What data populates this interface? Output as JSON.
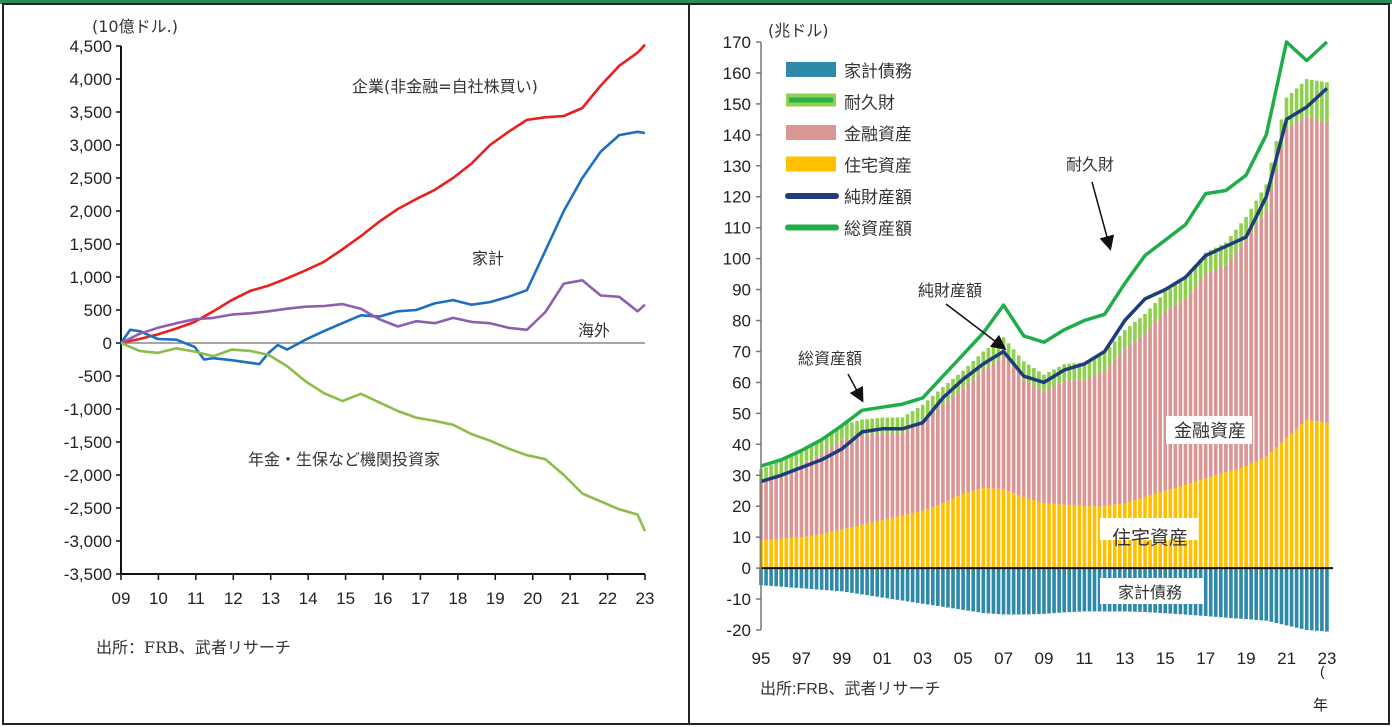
{
  "chart_data": [
    {
      "type": "line",
      "unit_label": "(10億ドル.)",
      "ylim": [
        -3500,
        4500
      ],
      "yticks": [
        4500,
        4000,
        3500,
        3000,
        2500,
        2000,
        1500,
        1000,
        500,
        0,
        -500,
        -1000,
        -1500,
        -2000,
        -2500,
        -3000,
        -3500
      ],
      "ytick_labels": [
        "4,500",
        "4,000",
        "3,500",
        "3,000",
        "2,500",
        "2,000",
        "1,500",
        "1,000",
        "500",
        "0",
        "-500",
        "-1,000",
        "-1,500",
        "-2,000",
        "-2,500",
        "-3,000",
        "-3,500"
      ],
      "xlim": [
        2009,
        2023.2
      ],
      "xtick_labels": [
        "09",
        "10",
        "11",
        "12",
        "13",
        "14",
        "15",
        "16",
        "17",
        "18",
        "19",
        "20",
        "21",
        "22",
        "23"
      ],
      "source": "出所：FRB、武者リサーチ",
      "series": [
        {
          "name": "企業(非金融=自社株買い)",
          "color": "#e8201e",
          "x": [
            2009,
            2009.5,
            2010,
            2010.5,
            2011,
            2011.5,
            2012,
            2012.5,
            2013,
            2013.5,
            2014,
            2014.5,
            2015,
            2015.5,
            2016,
            2016.5,
            2017,
            2017.5,
            2018,
            2018.5,
            2019,
            2019.5,
            2020,
            2020.5,
            2021,
            2021.5,
            2022,
            2022.5,
            2023,
            2023.2
          ],
          "y": [
            0,
            60,
            130,
            220,
            320,
            480,
            650,
            790,
            870,
            980,
            1100,
            1230,
            1420,
            1620,
            1840,
            2030,
            2180,
            2320,
            2500,
            2720,
            3000,
            3200,
            3380,
            3420,
            3440,
            3560,
            3900,
            4200,
            4400,
            4520
          ]
        },
        {
          "name": "家計",
          "color": "#1f6fc0",
          "x": [
            2009,
            2009.25,
            2009.5,
            2010,
            2010.5,
            2011,
            2011.25,
            2011.5,
            2012,
            2012.5,
            2012.75,
            2013,
            2013.25,
            2013.5,
            2014,
            2014.5,
            2015,
            2015.5,
            2016,
            2016.5,
            2017,
            2017.5,
            2018,
            2018.5,
            2019,
            2019.5,
            2020,
            2020.5,
            2021,
            2021.5,
            2022,
            2022.5,
            2023,
            2023.2
          ],
          "y": [
            0,
            200,
            180,
            60,
            50,
            -60,
            -250,
            -230,
            -260,
            -300,
            -320,
            -150,
            -30,
            -100,
            50,
            180,
            300,
            420,
            400,
            480,
            500,
            600,
            650,
            580,
            620,
            700,
            800,
            1400,
            2000,
            2500,
            2900,
            3150,
            3200,
            3180
          ]
        },
        {
          "name": "海外",
          "color": "#8e5fb0",
          "x": [
            2009,
            2009.5,
            2010,
            2010.5,
            2011,
            2011.5,
            2012,
            2012.5,
            2013,
            2013.5,
            2014,
            2014.5,
            2015,
            2015.5,
            2016,
            2016.5,
            2017,
            2017.5,
            2018,
            2018.5,
            2019,
            2019.5,
            2020,
            2020.5,
            2021,
            2021.5,
            2022,
            2022.5,
            2023,
            2023.2
          ],
          "y": [
            0,
            140,
            230,
            300,
            360,
            380,
            430,
            450,
            480,
            520,
            550,
            560,
            590,
            520,
            360,
            250,
            330,
            300,
            380,
            320,
            300,
            230,
            200,
            470,
            900,
            950,
            720,
            700,
            480,
            580
          ]
        },
        {
          "name": "年金・生保など機関投資家",
          "color": "#8cbd4a",
          "x": [
            2009,
            2009.5,
            2010,
            2010.5,
            2011,
            2011.5,
            2012,
            2012.5,
            2013,
            2013.5,
            2014,
            2014.5,
            2015,
            2015.5,
            2016,
            2016.5,
            2017,
            2017.5,
            2018,
            2018.5,
            2019,
            2019.5,
            2020,
            2020.5,
            2021,
            2021.5,
            2022,
            2022.5,
            2023,
            2023.2
          ],
          "y": [
            0,
            -120,
            -150,
            -80,
            -130,
            -200,
            -100,
            -120,
            -180,
            -350,
            -580,
            -760,
            -880,
            -770,
            -900,
            -1030,
            -1130,
            -1180,
            -1240,
            -1380,
            -1480,
            -1600,
            -1700,
            -1760,
            -2000,
            -2280,
            -2400,
            -2520,
            -2600,
            -2850
          ]
        }
      ],
      "annotations": [
        {
          "text": "企業(非金融=自社株買い)",
          "series": "企業(非金融=自社株買い)"
        },
        {
          "text": "家計",
          "series": "家計"
        },
        {
          "text": "海外",
          "series": "海外"
        },
        {
          "text": "年金・生保など機関投資家",
          "series": "年金・生保など機関投資家"
        }
      ],
      "zero_line": true
    },
    {
      "type": "bar",
      "stacked": true,
      "unit_label": "(兆ドル)",
      "ylim": [
        -20,
        170
      ],
      "yticks": [
        170,
        160,
        150,
        140,
        130,
        120,
        110,
        100,
        90,
        80,
        70,
        60,
        50,
        40,
        30,
        20,
        10,
        0,
        -10,
        -20
      ],
      "xlim": [
        1995,
        2023.3
      ],
      "xtick_labels": [
        "95",
        "97",
        "99",
        "01",
        "03",
        "05",
        "07",
        "09",
        "11",
        "13",
        "15",
        "17",
        "19",
        "21",
        "23"
      ],
      "x_unit_label": "(年",
      "source": "出所:FRB、武者リサーチ",
      "legend": [
        {
          "label": "家計債務",
          "color": "#2e8aa8",
          "kind": "bar"
        },
        {
          "label": "耐久財",
          "color": "#8fd14f",
          "border": "#22b14c",
          "kind": "bar"
        },
        {
          "label": "金融資産",
          "color": "#d99694",
          "kind": "bar"
        },
        {
          "label": "住宅資産",
          "color": "#ffc000",
          "kind": "bar"
        },
        {
          "label": "純財産額",
          "color": "#1f3d7a",
          "kind": "line"
        },
        {
          "label": "総資産額",
          "color": "#1fad4a",
          "kind": "line"
        }
      ],
      "legend_position": "top-left",
      "x": [
        1995,
        1996,
        1997,
        1998,
        1999,
        2000,
        2001,
        2002,
        2003,
        2004,
        2005,
        2006,
        2007,
        2008,
        2009,
        2010,
        2011,
        2012,
        2013,
        2014,
        2015,
        2016,
        2017,
        2018,
        2019,
        2020,
        2021,
        2022,
        2023
      ],
      "series": [
        {
          "name": "住宅資産",
          "values": [
            9,
            9.5,
            10,
            11,
            12.5,
            14,
            15.5,
            17,
            18.5,
            21,
            24,
            26,
            25.5,
            23,
            21,
            20.5,
            20,
            20,
            21,
            23,
            25,
            27,
            29,
            31,
            33,
            36,
            42,
            48,
            47
          ]
        },
        {
          "name": "金融資産",
          "values": [
            19,
            21,
            23.5,
            26,
            29,
            29,
            28,
            26.5,
            29,
            32,
            34,
            38,
            43,
            38,
            36,
            40,
            41,
            44,
            50,
            53,
            58,
            60,
            66,
            67,
            73,
            80,
            100,
            98,
            97
          ]
        },
        {
          "name": "耐久財",
          "values": [
            4,
            4.2,
            4.4,
            4.6,
            4.8,
            5,
            5.1,
            5.2,
            5.3,
            5.5,
            5.8,
            6,
            6.1,
            5.8,
            5.5,
            5.4,
            5.5,
            5.7,
            5.9,
            6.1,
            6.3,
            6.6,
            6.9,
            7.2,
            7.5,
            8,
            10,
            12,
            13
          ]
        },
        {
          "name": "家計債務",
          "values": [
            -5.5,
            -6,
            -6.5,
            -7,
            -7.5,
            -8.5,
            -9.5,
            -10.5,
            -11.5,
            -12.5,
            -13.5,
            -14.5,
            -15,
            -15,
            -14.8,
            -14.3,
            -14,
            -14,
            -14,
            -14.2,
            -14.6,
            -15,
            -15.5,
            -16,
            -16.5,
            -17,
            -18.5,
            -20,
            -20.5
          ]
        },
        {
          "name": "純財産額",
          "values": [
            28,
            30,
            32.5,
            35,
            38.5,
            44,
            45,
            45,
            47,
            55,
            61,
            66,
            70,
            62,
            60,
            64,
            66,
            70,
            80,
            87,
            90,
            94,
            101,
            104,
            107,
            120,
            145,
            149,
            155
          ]
        },
        {
          "name": "総資産額",
          "values": [
            33,
            35,
            38,
            41.5,
            46,
            51,
            52,
            53,
            55,
            62,
            69,
            76,
            85,
            75,
            73,
            77,
            80,
            82,
            92,
            101,
            106,
            111,
            121,
            122,
            127,
            140,
            170,
            164,
            170
          ]
        }
      ],
      "annotations": [
        {
          "text": "総資産額",
          "arrow_to": "総資産額"
        },
        {
          "text": "純財産額",
          "arrow_to": "純財産額"
        },
        {
          "text": "耐久財",
          "arrow_to": "耐久財"
        },
        {
          "text": "金融資産",
          "label_on": "金融資産"
        },
        {
          "text": "住宅資産",
          "label_on": "住宅資産"
        },
        {
          "text": "家計債務",
          "label_on": "家計債務"
        }
      ]
    }
  ]
}
